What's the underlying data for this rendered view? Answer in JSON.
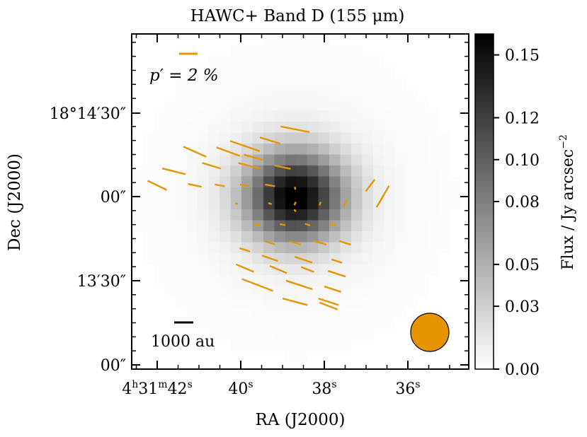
{
  "chart_data": {
    "type": "heatmap",
    "title": "HAWC+ Band D (155 μm)",
    "xlabel": "RA (J2000)",
    "ylabel": "Dec (J2000)",
    "colorbar_label": "Flux / Jy arcsec",
    "colorbar_label_exponent": "−2",
    "colormap": "gray_r",
    "vector_color": "#E69500",
    "beam_color": "#E69500",
    "vector_scale_label": "p′ = 2 %",
    "vector_scale_percent": 2,
    "scalebar_label": "1000 au",
    "scalebar_au": 1000,
    "x_ticks": [
      {
        "value_s": 42,
        "h": "4",
        "hsup": "h",
        "m": "31",
        "msup": "m",
        "s": "42",
        "ssup": "s"
      },
      {
        "value_s": 40,
        "s": "40",
        "ssup": "s"
      },
      {
        "value_s": 38,
        "s": "38",
        "ssup": "s"
      },
      {
        "value_s": 36,
        "s": "36",
        "ssup": "s"
      }
    ],
    "y_ticks": [
      {
        "value_arcsec": 30,
        "label": "18°14′30″"
      },
      {
        "value_arcsec": 0,
        "label": "00″"
      },
      {
        "value_arcsec": -30,
        "label": "13′30″"
      },
      {
        "value_arcsec": -60,
        "label": "00″"
      }
    ],
    "colorbar": {
      "vmin": 0.0,
      "vmax": 0.16,
      "ticks": [
        "0.00",
        "0.03",
        "0.05",
        "0.08",
        "0.10",
        "0.12",
        "0.15"
      ],
      "tick_values": [
        0.0,
        0.03,
        0.05,
        0.08,
        0.1,
        0.12,
        0.15
      ]
    },
    "source_peak_flux": 0.16,
    "polarization_vectors": [
      {
        "ra_s": 38.7,
        "dec_arcsec": 24.0,
        "p": 3.2,
        "pa_deg": 79
      },
      {
        "ra_s": 39.3,
        "dec_arcsec": 20.0,
        "p": 2.3,
        "pa_deg": 73
      },
      {
        "ra_s": 39.9,
        "dec_arcsec": 18.0,
        "p": 3.4,
        "pa_deg": 71
      },
      {
        "ra_s": 41.1,
        "dec_arcsec": 16.0,
        "p": 2.7,
        "pa_deg": 66
      },
      {
        "ra_s": 40.3,
        "dec_arcsec": 16.0,
        "p": 2.7,
        "pa_deg": 70
      },
      {
        "ra_s": 39.7,
        "dec_arcsec": 14.0,
        "p": 2.1,
        "pa_deg": 74
      },
      {
        "ra_s": 40.7,
        "dec_arcsec": 11.0,
        "p": 2.1,
        "pa_deg": 73
      },
      {
        "ra_s": 39.8,
        "dec_arcsec": 11.0,
        "p": 2.4,
        "pa_deg": 76
      },
      {
        "ra_s": 41.6,
        "dec_arcsec": 9.0,
        "p": 2.6,
        "pa_deg": 76
      },
      {
        "ra_s": 39.0,
        "dec_arcsec": 10.5,
        "p": 1.8,
        "pa_deg": 78
      },
      {
        "ra_s": 41.1,
        "dec_arcsec": 4.0,
        "p": 1.5,
        "pa_deg": 78
      },
      {
        "ra_s": 40.5,
        "dec_arcsec": 4.0,
        "p": 1.1,
        "pa_deg": 80
      },
      {
        "ra_s": 39.9,
        "dec_arcsec": 4.0,
        "p": 1.1,
        "pa_deg": 80
      },
      {
        "ra_s": 39.3,
        "dec_arcsec": 4.0,
        "p": 1.1,
        "pa_deg": 80
      },
      {
        "ra_s": 42.0,
        "dec_arcsec": 4.0,
        "p": 2.3,
        "pa_deg": 64
      },
      {
        "ra_s": 36.9,
        "dec_arcsec": 4.0,
        "p": 1.6,
        "pa_deg": 143
      },
      {
        "ra_s": 38.7,
        "dec_arcsec": 3.0,
        "p": 0.3,
        "pa_deg": 10
      },
      {
        "ra_s": 36.6,
        "dec_arcsec": 0.0,
        "p": 2.7,
        "pa_deg": 150
      },
      {
        "ra_s": 40.1,
        "dec_arcsec": -2.5,
        "p": 0.3,
        "pa_deg": 80
      },
      {
        "ra_s": 39.3,
        "dec_arcsec": -2.5,
        "p": 0.4,
        "pa_deg": 70
      },
      {
        "ra_s": 38.7,
        "dec_arcsec": -2.5,
        "p": 0.4,
        "pa_deg": 155
      },
      {
        "ra_s": 38.1,
        "dec_arcsec": -2.5,
        "p": 0.4,
        "pa_deg": 160
      },
      {
        "ra_s": 37.5,
        "dec_arcsec": -2.5,
        "p": 0.8,
        "pa_deg": 150
      },
      {
        "ra_s": 38.7,
        "dec_arcsec": -5.0,
        "p": 0.3,
        "pa_deg": 35
      },
      {
        "ra_s": 39.6,
        "dec_arcsec": -10.0,
        "p": 0.6,
        "pa_deg": 80
      },
      {
        "ra_s": 39.0,
        "dec_arcsec": -10.0,
        "p": 0.6,
        "pa_deg": 80
      },
      {
        "ra_s": 38.4,
        "dec_arcsec": -10.0,
        "p": 0.6,
        "pa_deg": 70
      },
      {
        "ra_s": 37.8,
        "dec_arcsec": -10.0,
        "p": 0.6,
        "pa_deg": 80
      },
      {
        "ra_s": 39.3,
        "dec_arcsec": -16.5,
        "p": 1.1,
        "pa_deg": 72
      },
      {
        "ra_s": 38.7,
        "dec_arcsec": -16.5,
        "p": 1.3,
        "pa_deg": 74
      },
      {
        "ra_s": 38.1,
        "dec_arcsec": -16.5,
        "p": 1.4,
        "pa_deg": 74
      },
      {
        "ra_s": 37.5,
        "dec_arcsec": -16.5,
        "p": 1.3,
        "pa_deg": 72
      },
      {
        "ra_s": 39.9,
        "dec_arcsec": -19.0,
        "p": 1.2,
        "pa_deg": 72
      },
      {
        "ra_s": 39.3,
        "dec_arcsec": -22.0,
        "p": 1.8,
        "pa_deg": 71
      },
      {
        "ra_s": 38.5,
        "dec_arcsec": -22.5,
        "p": 2.0,
        "pa_deg": 71
      },
      {
        "ra_s": 37.7,
        "dec_arcsec": -23.0,
        "p": 1.2,
        "pa_deg": 72
      },
      {
        "ra_s": 39.9,
        "dec_arcsec": -25.5,
        "p": 2.1,
        "pa_deg": 67
      },
      {
        "ra_s": 39.1,
        "dec_arcsec": -26.0,
        "p": 2.0,
        "pa_deg": 67
      },
      {
        "ra_s": 38.4,
        "dec_arcsec": -26.0,
        "p": 1.5,
        "pa_deg": 69
      },
      {
        "ra_s": 37.7,
        "dec_arcsec": -27.5,
        "p": 2.0,
        "pa_deg": 72
      },
      {
        "ra_s": 39.6,
        "dec_arcsec": -31.5,
        "p": 3.6,
        "pa_deg": 69
      },
      {
        "ra_s": 38.6,
        "dec_arcsec": -31.5,
        "p": 3.0,
        "pa_deg": 72
      },
      {
        "ra_s": 37.8,
        "dec_arcsec": -33.0,
        "p": 1.9,
        "pa_deg": 72
      },
      {
        "ra_s": 38.7,
        "dec_arcsec": -37.5,
        "p": 2.8,
        "pa_deg": 75
      },
      {
        "ra_s": 37.9,
        "dec_arcsec": -39.0,
        "p": 2.1,
        "pa_deg": 69
      },
      {
        "ra_s": 37.9,
        "dec_arcsec": -37.5,
        "p": 2.3,
        "pa_deg": 72
      }
    ]
  }
}
